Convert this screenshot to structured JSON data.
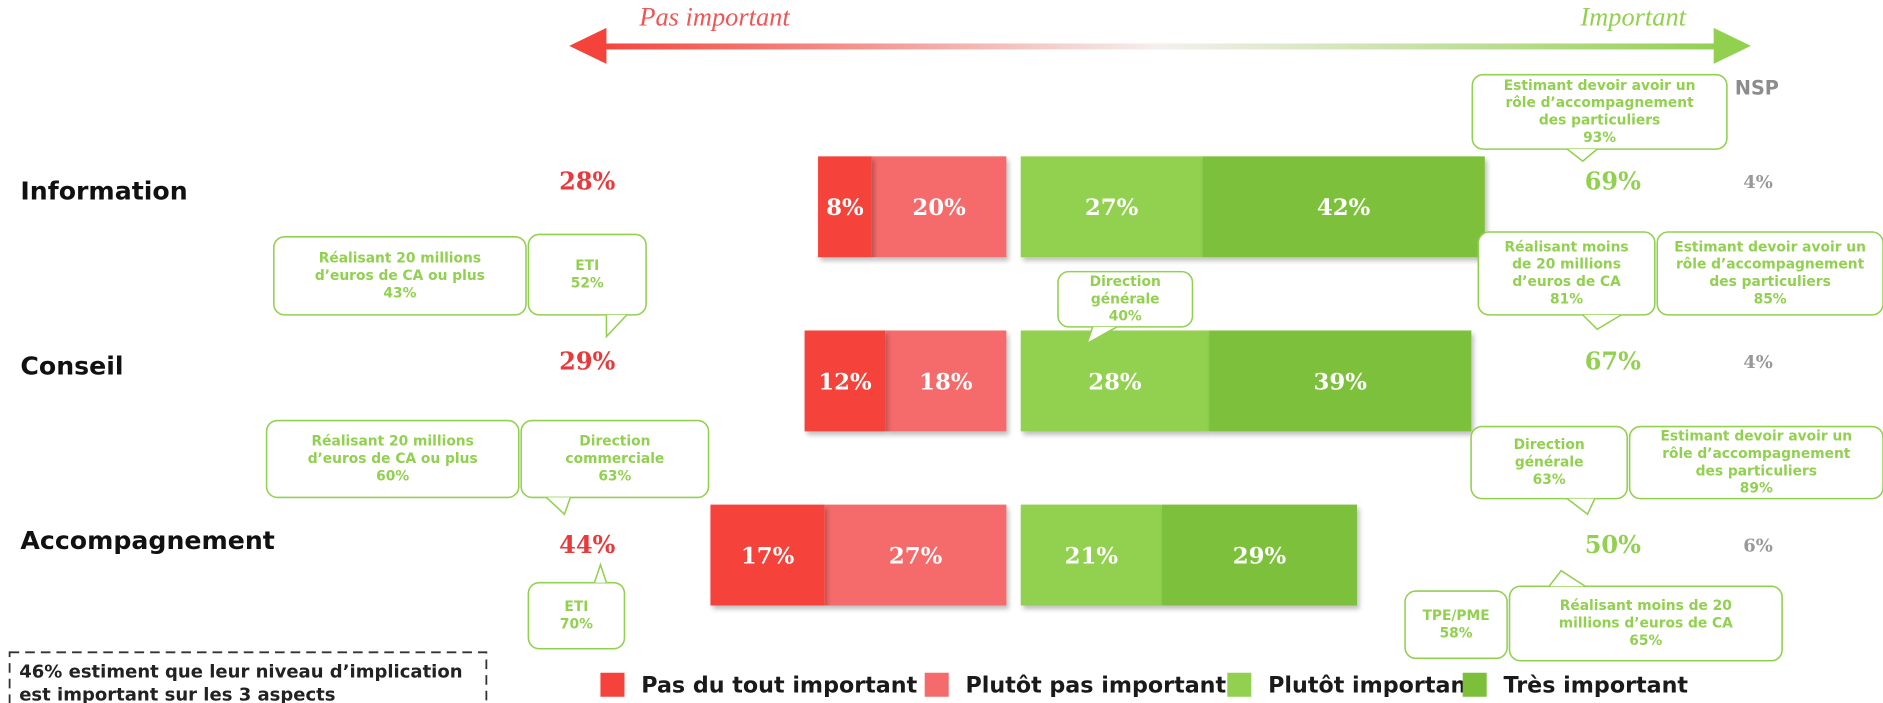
{
  "chart_data": {
    "type": "diverging_bar",
    "axis_left_label": "Pas important",
    "axis_right_label": "Important",
    "categories": [
      "Information",
      "Conseil",
      "Accompagnement"
    ],
    "series": [
      {
        "name": "Pas du tout important",
        "color": "#f5423a",
        "side": "left",
        "values": [
          8,
          12,
          17
        ],
        "value_labels": [
          "8%",
          "12%",
          "17%"
        ]
      },
      {
        "name": "Plutôt pas important",
        "color": "#f56b6b",
        "side": "left",
        "values": [
          20,
          18,
          27
        ],
        "value_labels": [
          "20%",
          "18%",
          "27%"
        ]
      },
      {
        "name": "Plutôt important",
        "color": "#92d050",
        "side": "right",
        "values": [
          27,
          28,
          21
        ],
        "value_labels": [
          "27%",
          "28%",
          "21%"
        ]
      },
      {
        "name": "Très important",
        "color": "#7cc03a",
        "side": "right",
        "values": [
          42,
          39,
          29
        ],
        "value_labels": [
          "42%",
          "39%",
          "29%"
        ]
      }
    ],
    "left_totals": {
      "values": [
        28,
        29,
        44
      ],
      "value_labels": [
        "28%",
        "29%",
        "44%"
      ]
    },
    "right_totals": {
      "values": [
        69,
        67,
        50
      ],
      "value_labels": [
        "69%",
        "67%",
        "50%"
      ]
    },
    "nsp": {
      "label": "NSP",
      "values": [
        4,
        4,
        6
      ],
      "value_labels": [
        "4%",
        "4%",
        "6%"
      ]
    },
    "callouts": [
      {
        "lines": [
          "Estimant devoir avoir un",
          "rôle d’accompagnement",
          "des particuliers"
        ],
        "value_label": "93%"
      },
      {
        "lines": [
          "Réalisant 20 millions",
          "d’euros de CA ou plus"
        ],
        "value_label": "43%"
      },
      {
        "lines": [
          "ETI"
        ],
        "value_label": "52%"
      },
      {
        "lines": [
          "Direction",
          "générale"
        ],
        "value_label": "40%"
      },
      {
        "lines": [
          "Réalisant moins",
          "de 20 millions",
          "d’euros de CA"
        ],
        "value_label": "81%"
      },
      {
        "lines": [
          "Estimant devoir avoir un",
          "rôle d’accompagnement",
          "des particuliers"
        ],
        "value_label": "85%"
      },
      {
        "lines": [
          "Réalisant 20 millions",
          "d’euros de CA ou plus"
        ],
        "value_label": "60%"
      },
      {
        "lines": [
          "Direction",
          "commerciale"
        ],
        "value_label": "63%"
      },
      {
        "lines": [
          "Direction",
          "générale"
        ],
        "value_label": "63%"
      },
      {
        "lines": [
          "Estimant devoir avoir un",
          "rôle d’accompagnement",
          "des particuliers"
        ],
        "value_label": "89%"
      },
      {
        "lines": [
          "ETI"
        ],
        "value_label": "70%"
      },
      {
        "lines": [
          "TPE/PME"
        ],
        "value_label": "58%"
      },
      {
        "lines": [
          "Réalisant moins de 20",
          "millions d’euros de CA"
        ],
        "value_label": "65%"
      }
    ],
    "note": "46% estiment que leur niveau d’implication est important sur les 3 aspects"
  }
}
